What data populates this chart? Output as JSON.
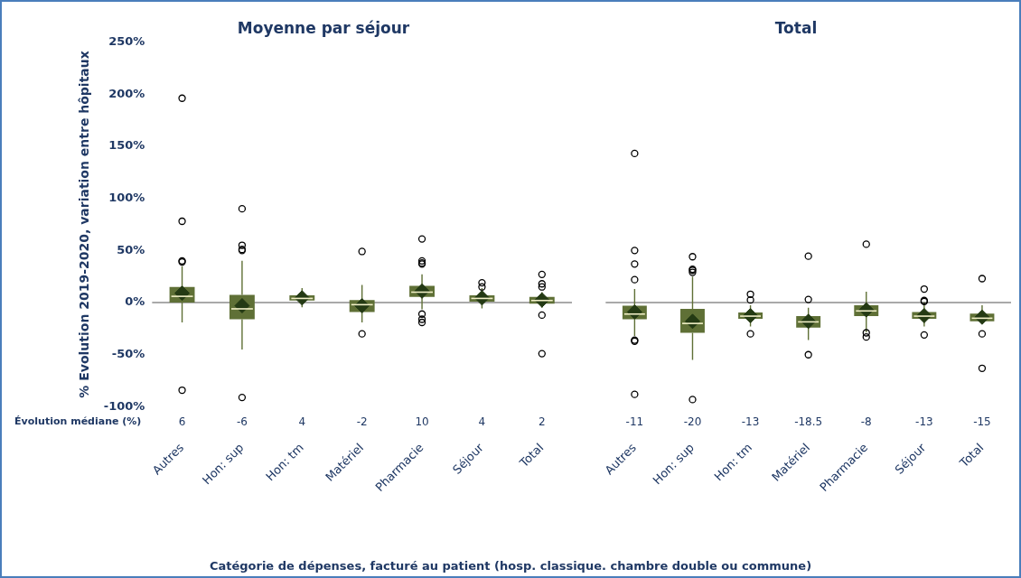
{
  "chart_data": [
    {
      "type": "box",
      "title": "Moyenne par séjour",
      "ylabel": "% Evolution 2019-2020, variation entre hôpitaux",
      "xlabel": "Catégorie de dépenses, facturé au patient (hosp. classique. chambre double ou commune)",
      "categories": [
        "Autres",
        "Hon: sup",
        "Hon: tm",
        "Matériel",
        "Pharmacie",
        "Séjour",
        "Total"
      ],
      "color": "#5f7036",
      "marker": "diamond",
      "legend": false,
      "grid": false,
      "value_labels": [
        "6",
        "-6",
        "4",
        "-2",
        "10",
        "4",
        "2"
      ],
      "annotations": [
        "Évolution médiane (%)"
      ],
      "ylim": [
        -100,
        250
      ],
      "yticks": [
        {
          "value": -100,
          "label": "-100%"
        },
        {
          "value": -50,
          "label": "-50%"
        },
        {
          "value": 0,
          "label": "0%"
        },
        {
          "value": 50,
          "label": "50%"
        },
        {
          "value": 100,
          "label": "100%"
        },
        {
          "value": 150,
          "label": "150%"
        },
        {
          "value": 200,
          "label": "200%"
        },
        {
          "value": 250,
          "label": "250%"
        }
      ],
      "ref_lines": [
        {
          "axis": "y",
          "value": 0,
          "color": "#8c8c8c"
        }
      ],
      "boxes": [
        {
          "low": -19,
          "q1": 0,
          "median": 6,
          "q3": 15,
          "high": 35,
          "mean": 9,
          "outliers": [
            196,
            78,
            40,
            39,
            -84
          ]
        },
        {
          "low": -45,
          "q1": -16,
          "median": -6,
          "q3": 7.5,
          "high": 40,
          "mean": -3,
          "outliers": [
            90,
            55,
            51,
            50,
            -91
          ]
        },
        {
          "low": -4.5,
          "q1": 2,
          "median": 4,
          "q3": 7,
          "high": 14,
          "mean": 4.5
        },
        {
          "low": -19,
          "q1": -9,
          "median": -2,
          "q3": 2.5,
          "high": 17,
          "mean": -3,
          "outliers": [
            49,
            -30
          ]
        },
        {
          "low": -6.5,
          "q1": 5.5,
          "median": 10,
          "q3": 16,
          "high": 27,
          "mean": 11,
          "outliers": [
            61,
            40,
            38,
            37,
            -11,
            -16,
            -19
          ]
        },
        {
          "low": -5.5,
          "q1": 1,
          "median": 4,
          "q3": 7,
          "high": 14,
          "mean": 4.5,
          "outliers": [
            19,
            15
          ]
        },
        {
          "low": -5,
          "q1": -1,
          "median": 2,
          "q3": 5.5,
          "high": 10,
          "mean": 2.5,
          "outliers": [
            27,
            18,
            15,
            -12,
            -49
          ]
        }
      ]
    },
    {
      "type": "box",
      "title": "Total",
      "tick_labels": "x",
      "categories": [
        "Autres",
        "Hon: sup",
        "Hon: tm",
        "Matériel",
        "Pharmacie",
        "Séjour",
        "Total"
      ],
      "color": "#5f7036",
      "marker": "diamond",
      "legend": false,
      "grid": false,
      "value_labels": [
        "-11",
        "-20",
        "-13",
        "-18.5",
        "-8",
        "-13",
        "-15"
      ],
      "ylim": [
        -100,
        250
      ],
      "ref_lines": [
        {
          "axis": "y",
          "value": 0,
          "color": "#8c8c8c"
        }
      ],
      "boxes": [
        {
          "low": -32,
          "q1": -16,
          "median": -11,
          "q3": -3,
          "high": 13,
          "mean": -9,
          "outliers": [
            143,
            50,
            37,
            22,
            -36,
            -37,
            -88
          ]
        },
        {
          "low": -55,
          "q1": -29,
          "median": -20,
          "q3": -6,
          "high": 25,
          "mean": -18,
          "outliers": [
            44,
            32,
            31,
            29,
            -93
          ]
        },
        {
          "low": -23,
          "q1": -15.5,
          "median": -13,
          "q3": -9.5,
          "high": -2.5,
          "mean": -12.5,
          "outliers": [
            8,
            2.5,
            -30
          ]
        },
        {
          "low": -36,
          "q1": -24,
          "median": -18.5,
          "q3": -13,
          "high": -5,
          "mean": -18,
          "outliers": [
            44.5,
            3,
            -50
          ]
        },
        {
          "low": -28.5,
          "q1": -13,
          "median": -8,
          "q3": -2.5,
          "high": 10.5,
          "mean": -7,
          "outliers": [
            56,
            -29,
            -33
          ]
        },
        {
          "low": -23,
          "q1": -15.5,
          "median": -13,
          "q3": -9,
          "high": 0.5,
          "mean": -12.5,
          "outliers": [
            13,
            2,
            1,
            -31
          ]
        },
        {
          "low": -20,
          "q1": -18,
          "median": -15,
          "q3": -10.5,
          "high": -2.5,
          "mean": -14,
          "outliers": [
            23,
            -30,
            -63
          ]
        }
      ]
    }
  ]
}
